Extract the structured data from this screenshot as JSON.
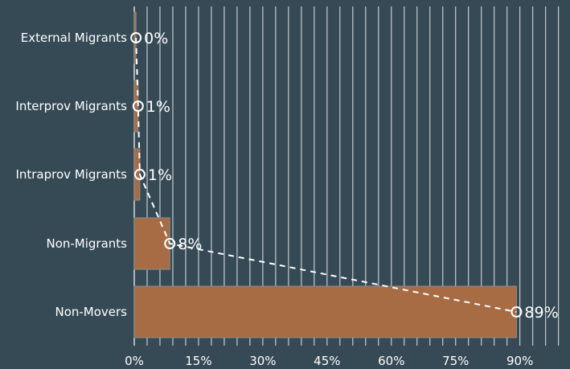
{
  "chart_data": {
    "type": "bar",
    "orientation": "horizontal",
    "categories": [
      "External Migrants",
      "Interprov Migrants",
      "Intraprov Migrants",
      "Non-Migrants",
      "Non-Movers"
    ],
    "values": [
      0.4,
      0.9,
      1.3,
      8.3,
      89.2
    ],
    "data_labels": [
      "0%",
      "1%",
      "1%",
      "8%",
      "89%"
    ],
    "overlay": {
      "type": "line",
      "style": "dashed",
      "markers": "open-circle",
      "values": [
        0.4,
        0.9,
        1.3,
        8.3,
        89.2
      ]
    },
    "x_ticks": [
      0,
      15,
      30,
      45,
      60,
      75,
      90
    ],
    "x_tick_labels": [
      "0%",
      "15%",
      "30%",
      "45%",
      "60%",
      "75%",
      "90%"
    ],
    "xlim": [
      0,
      100
    ],
    "grid": "vertical lines every 3%",
    "title": "",
    "xlabel": "",
    "ylabel": "",
    "colors": {
      "background": "#364a56",
      "bar_fill": "#a86c45",
      "bar_stroke": "#8d8d8d",
      "grid": "#ffffff",
      "text": "#ffffff",
      "line": "#ffffff"
    }
  }
}
